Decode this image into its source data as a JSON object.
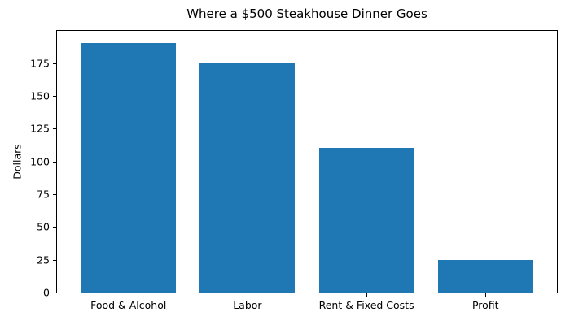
{
  "chart_data": {
    "type": "bar",
    "title": "Where a $500 Steakhouse Dinner Goes",
    "categories": [
      "Food & Alcohol",
      "Labor",
      "Rent & Fixed Costs",
      "Profit"
    ],
    "values": [
      190,
      175,
      110,
      25
    ],
    "xlabel": "",
    "ylabel": "Dollars",
    "yticks": [
      0,
      25,
      50,
      75,
      100,
      125,
      150,
      175
    ],
    "ylim": [
      0,
      199.5
    ],
    "bar_color": "#1f77b4",
    "bar_width_fraction": 0.8,
    "grid": false,
    "legend": "none",
    "spine_color": "#000000",
    "text_color": "#000000",
    "background_color": "#ffffff"
  }
}
